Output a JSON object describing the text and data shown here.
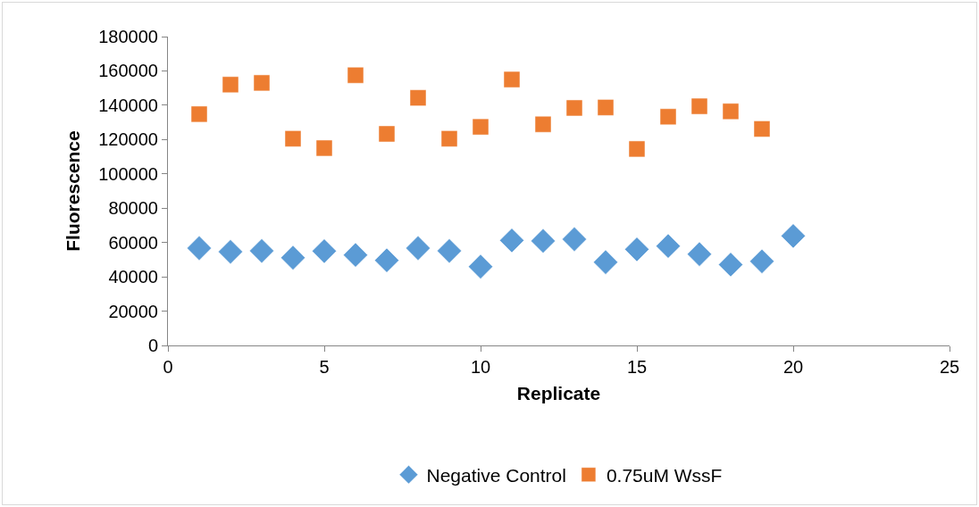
{
  "chart_data": {
    "type": "scatter",
    "xlabel": "Replicate",
    "ylabel": "Fluorescence",
    "x": [
      1,
      2,
      3,
      4,
      5,
      6,
      7,
      8,
      9,
      10,
      11,
      12,
      13,
      14,
      15,
      16,
      17,
      18,
      19,
      20
    ],
    "series": [
      {
        "name": "Negative Control",
        "color": "#5b9bd5",
        "marker": "diamond",
        "values": [
          56700,
          54600,
          55100,
          51100,
          55000,
          52700,
          49600,
          56700,
          55100,
          45900,
          61200,
          60900,
          61900,
          48500,
          56000,
          57900,
          53200,
          47100,
          49000,
          63800
        ]
      },
      {
        "name": "0.75uM WssF",
        "color": "#ed7d31",
        "marker": "square",
        "x": [
          1,
          2,
          3,
          4,
          5,
          6,
          7,
          8,
          9,
          10,
          11,
          12,
          13,
          14,
          15,
          16,
          17,
          18,
          19
        ],
        "values": [
          134800,
          152000,
          153000,
          120500,
          115000,
          157500,
          123300,
          144300,
          120500,
          127400,
          155000,
          128900,
          138400,
          138700,
          114500,
          133300,
          139400,
          136400,
          126200
        ]
      }
    ],
    "xlim": [
      0,
      25
    ],
    "xticks": [
      0,
      5,
      10,
      15,
      20,
      25
    ],
    "ylim": [
      0,
      180000
    ],
    "yticks": [
      0,
      20000,
      40000,
      60000,
      80000,
      100000,
      120000,
      140000,
      160000,
      180000
    ],
    "grid": false,
    "legend": "bottom"
  }
}
